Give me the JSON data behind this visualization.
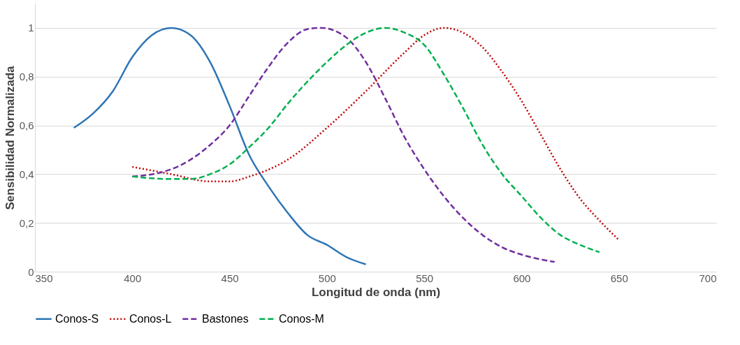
{
  "chart_data": {
    "type": "line",
    "xlabel": "Longitud de onda (nm)",
    "ylabel": "Sensibilidad Normalizada",
    "xlim": [
      350,
      700
    ],
    "xticks": [
      350,
      400,
      450,
      500,
      550,
      600,
      650,
      700
    ],
    "ylim": [
      0,
      1.1
    ],
    "yticks": [
      {
        "value": 0,
        "label": "0"
      },
      {
        "value": 0.2,
        "label": "0,2"
      },
      {
        "value": 0.4,
        "label": "0,4"
      },
      {
        "value": 0.6,
        "label": "0,6"
      },
      {
        "value": 0.8,
        "label": "0,8"
      },
      {
        "value": 1,
        "label": "1"
      }
    ],
    "grid": "y",
    "legend": "bottom",
    "series": [
      {
        "name": "Conos-S",
        "color": "#2e75b6",
        "line_style": "solid",
        "x": [
          370,
          380,
          390,
          400,
          410,
          420,
          430,
          440,
          450,
          460,
          470,
          480,
          490,
          500,
          510,
          520
        ],
        "values": [
          0.59,
          0.65,
          0.74,
          0.88,
          0.97,
          1.0,
          0.97,
          0.86,
          0.68,
          0.48,
          0.35,
          0.24,
          0.15,
          0.11,
          0.06,
          0.03
        ]
      },
      {
        "name": "Conos-L",
        "color": "#c00000",
        "line_style": "dotted",
        "x": [
          400,
          420,
          440,
          450,
          460,
          480,
          500,
          520,
          540,
          550,
          560,
          570,
          580,
          590,
          600,
          610,
          620,
          630,
          640,
          650
        ],
        "values": [
          0.43,
          0.4,
          0.37,
          0.37,
          0.39,
          0.46,
          0.59,
          0.74,
          0.9,
          0.97,
          1.0,
          0.98,
          0.92,
          0.82,
          0.7,
          0.56,
          0.42,
          0.3,
          0.21,
          0.13
        ]
      },
      {
        "name": "Bastones",
        "color": "#7030a0",
        "line_style": "dashed",
        "x": [
          400,
          420,
          440,
          450,
          460,
          470,
          480,
          490,
          497,
          510,
          520,
          530,
          540,
          550,
          560,
          570,
          580,
          590,
          600,
          610,
          617
        ],
        "values": [
          0.39,
          0.42,
          0.52,
          0.6,
          0.72,
          0.84,
          0.94,
          0.995,
          1.0,
          0.96,
          0.86,
          0.71,
          0.55,
          0.42,
          0.31,
          0.22,
          0.15,
          0.1,
          0.07,
          0.05,
          0.04
        ]
      },
      {
        "name": "Conos-M",
        "color": "#00b050",
        "line_style": "dashed",
        "x": [
          400,
          420,
          430,
          440,
          450,
          460,
          470,
          480,
          490,
          500,
          510,
          520,
          530,
          540,
          550,
          560,
          570,
          580,
          590,
          600,
          610,
          620,
          630,
          640
        ],
        "values": [
          0.39,
          0.38,
          0.38,
          0.4,
          0.44,
          0.51,
          0.59,
          0.69,
          0.78,
          0.86,
          0.93,
          0.98,
          1.0,
          0.98,
          0.93,
          0.81,
          0.67,
          0.52,
          0.4,
          0.31,
          0.22,
          0.15,
          0.11,
          0.08
        ]
      }
    ]
  }
}
